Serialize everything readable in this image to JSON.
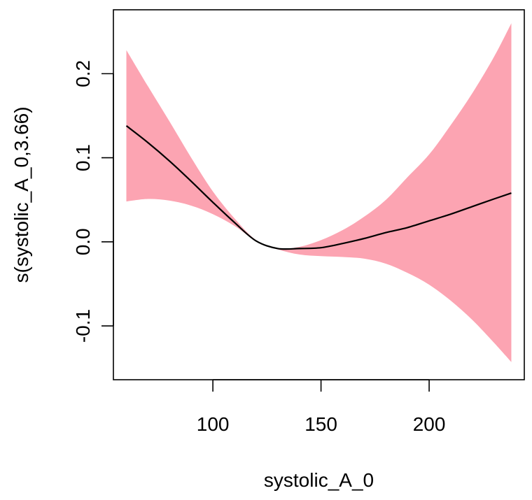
{
  "chart_data": {
    "type": "area",
    "title": "",
    "xlabel": "systolic_A_0",
    "ylabel": "s(systolic_A_0,3.66)",
    "xlim": [
      54,
      244
    ],
    "ylim": [
      -0.164,
      0.276
    ],
    "x_ticks": [
      100,
      150,
      200
    ],
    "x_tick_labels": [
      "100",
      "150",
      "200"
    ],
    "y_ticks": [
      -0.1,
      0.0,
      0.1,
      0.2
    ],
    "y_tick_labels": [
      "-0.1",
      "0.0",
      "0.1",
      "0.2"
    ],
    "grid": false,
    "colors": {
      "band": "#fca4b2",
      "line": "#000000",
      "axis": "#000000"
    },
    "series": [
      {
        "name": "confidence band",
        "kind": "band",
        "x": [
          60,
          70,
          80,
          90,
          100,
          110,
          120,
          130,
          140,
          150,
          160,
          170,
          180,
          190,
          200,
          210,
          220,
          230,
          238
        ],
        "upper": [
          0.228,
          0.185,
          0.143,
          0.1,
          0.06,
          0.028,
          0.002,
          -0.008,
          -0.006,
          0.002,
          0.014,
          0.03,
          0.05,
          0.077,
          0.104,
          0.139,
          0.177,
          0.22,
          0.26
        ],
        "lower": [
          0.048,
          0.051,
          0.049,
          0.043,
          0.033,
          0.019,
          0.001,
          -0.009,
          -0.015,
          -0.017,
          -0.018,
          -0.02,
          -0.026,
          -0.037,
          -0.051,
          -0.07,
          -0.093,
          -0.12,
          -0.143
        ]
      },
      {
        "name": "smooth estimate",
        "kind": "line",
        "x": [
          60,
          70,
          80,
          90,
          100,
          110,
          120,
          130,
          140,
          150,
          160,
          170,
          180,
          190,
          200,
          210,
          220,
          230,
          238
        ],
        "y": [
          0.138,
          0.118,
          0.096,
          0.072,
          0.047,
          0.023,
          0.001,
          -0.008,
          -0.008,
          -0.007,
          -0.002,
          0.004,
          0.011,
          0.017,
          0.025,
          0.033,
          0.042,
          0.051,
          0.058
        ]
      }
    ]
  }
}
